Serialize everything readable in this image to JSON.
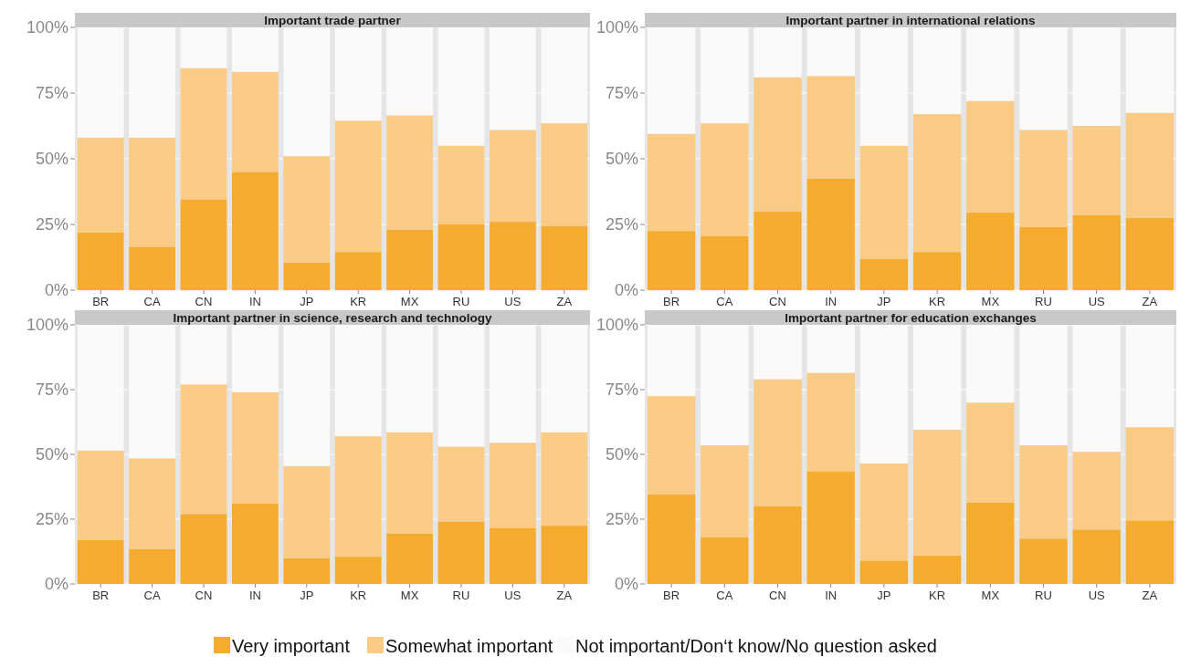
{
  "chart_data": [
    {
      "type": "bar",
      "title": "Important trade partner",
      "stacked": true,
      "categories": [
        "BR",
        "CA",
        "CN",
        "IN",
        "JP",
        "KR",
        "MX",
        "RU",
        "US",
        "ZA"
      ],
      "ylim": [
        0,
        100
      ],
      "yticks": [
        {
          "value": 0,
          "label": "0%"
        },
        {
          "value": 25,
          "label": "25%"
        },
        {
          "value": 50,
          "label": "50%"
        },
        {
          "value": 75,
          "label": "75%"
        },
        {
          "value": 100,
          "label": "100%"
        }
      ],
      "grid": "y",
      "legend": false,
      "series": [
        {
          "color": "#f5ab2d",
          "values": [
            22,
            16.5,
            34.5,
            45,
            10.5,
            14.5,
            23,
            25,
            26,
            24.5
          ]
        },
        {
          "color": "#f9cb85",
          "values": [
            36,
            41.5,
            50,
            38,
            40.5,
            50,
            43.5,
            30,
            35,
            39
          ]
        },
        {
          "color": "#fcf9f9",
          "values": [
            42,
            42,
            15.5,
            17,
            49,
            35.5,
            33.5,
            45,
            39,
            36.5
          ]
        }
      ]
    },
    {
      "type": "bar",
      "title": "Important partner in international relations",
      "stacked": true,
      "categories": [
        "BR",
        "CA",
        "CN",
        "IN",
        "JP",
        "KR",
        "MX",
        "RU",
        "US",
        "ZA"
      ],
      "ylim": [
        0,
        100
      ],
      "yticks": [
        {
          "value": 0,
          "label": "0%"
        },
        {
          "value": 25,
          "label": "25%"
        },
        {
          "value": 50,
          "label": "50%"
        },
        {
          "value": 75,
          "label": "75%"
        },
        {
          "value": 100,
          "label": "100%"
        }
      ],
      "grid": "y",
      "legend": false,
      "series": [
        {
          "color": "#f5ab2d",
          "values": [
            22.5,
            20.5,
            30,
            42.5,
            12,
            14.5,
            29.5,
            24,
            28.5,
            27.5
          ]
        },
        {
          "color": "#f9cb85",
          "values": [
            37,
            43,
            51,
            39,
            43,
            52.5,
            42.5,
            37,
            34,
            40
          ]
        },
        {
          "color": "#fcf9f9",
          "values": [
            40.5,
            36.5,
            19,
            18.5,
            45,
            33,
            28,
            39,
            37.5,
            32.5
          ]
        }
      ]
    },
    {
      "type": "bar",
      "title": "Important partner in science, research and technology",
      "stacked": true,
      "categories": [
        "BR",
        "CA",
        "CN",
        "IN",
        "JP",
        "KR",
        "MX",
        "RU",
        "US",
        "ZA"
      ],
      "ylim": [
        0,
        100
      ],
      "yticks": [
        {
          "value": 0,
          "label": "0%"
        },
        {
          "value": 25,
          "label": "25%"
        },
        {
          "value": 50,
          "label": "50%"
        },
        {
          "value": 75,
          "label": "75%"
        },
        {
          "value": 100,
          "label": "100%"
        }
      ],
      "grid": "y",
      "legend": false,
      "series": [
        {
          "color": "#f5ab2d",
          "values": [
            17,
            13.5,
            27,
            31,
            10,
            10.5,
            19.5,
            24,
            21.5,
            22.5
          ]
        },
        {
          "color": "#f9cb85",
          "values": [
            34.5,
            35,
            50,
            43,
            35.5,
            46.5,
            39,
            29,
            33,
            36
          ]
        },
        {
          "color": "#fcf9f9",
          "values": [
            48.5,
            51.5,
            23,
            26,
            54.5,
            43,
            41.5,
            47,
            45.5,
            41.5
          ]
        }
      ]
    },
    {
      "type": "bar",
      "title": "Important partner for education exchanges",
      "stacked": true,
      "categories": [
        "BR",
        "CA",
        "CN",
        "IN",
        "JP",
        "KR",
        "MX",
        "RU",
        "US",
        "ZA"
      ],
      "ylim": [
        0,
        100
      ],
      "yticks": [
        {
          "value": 0,
          "label": "0%"
        },
        {
          "value": 25,
          "label": "25%"
        },
        {
          "value": 50,
          "label": "50%"
        },
        {
          "value": 75,
          "label": "75%"
        },
        {
          "value": 100,
          "label": "100%"
        }
      ],
      "grid": "y",
      "legend": "bottom",
      "series": [
        {
          "name": "Very important",
          "color": "#f5ab2d",
          "values": [
            34.5,
            18,
            30,
            43.5,
            9,
            11,
            31.5,
            17.5,
            21,
            24.5
          ]
        },
        {
          "name": "Somewhat important",
          "color": "#f9cb85",
          "values": [
            38,
            35.5,
            49,
            38,
            37.5,
            48.5,
            38.5,
            36,
            30,
            36
          ]
        },
        {
          "name": "Not important/Don‘t know/No question asked",
          "color": "#fcf9f9",
          "values": [
            27.5,
            46.5,
            21,
            18.5,
            53.5,
            40.5,
            30,
            46.5,
            49,
            39.5
          ]
        }
      ]
    }
  ]
}
